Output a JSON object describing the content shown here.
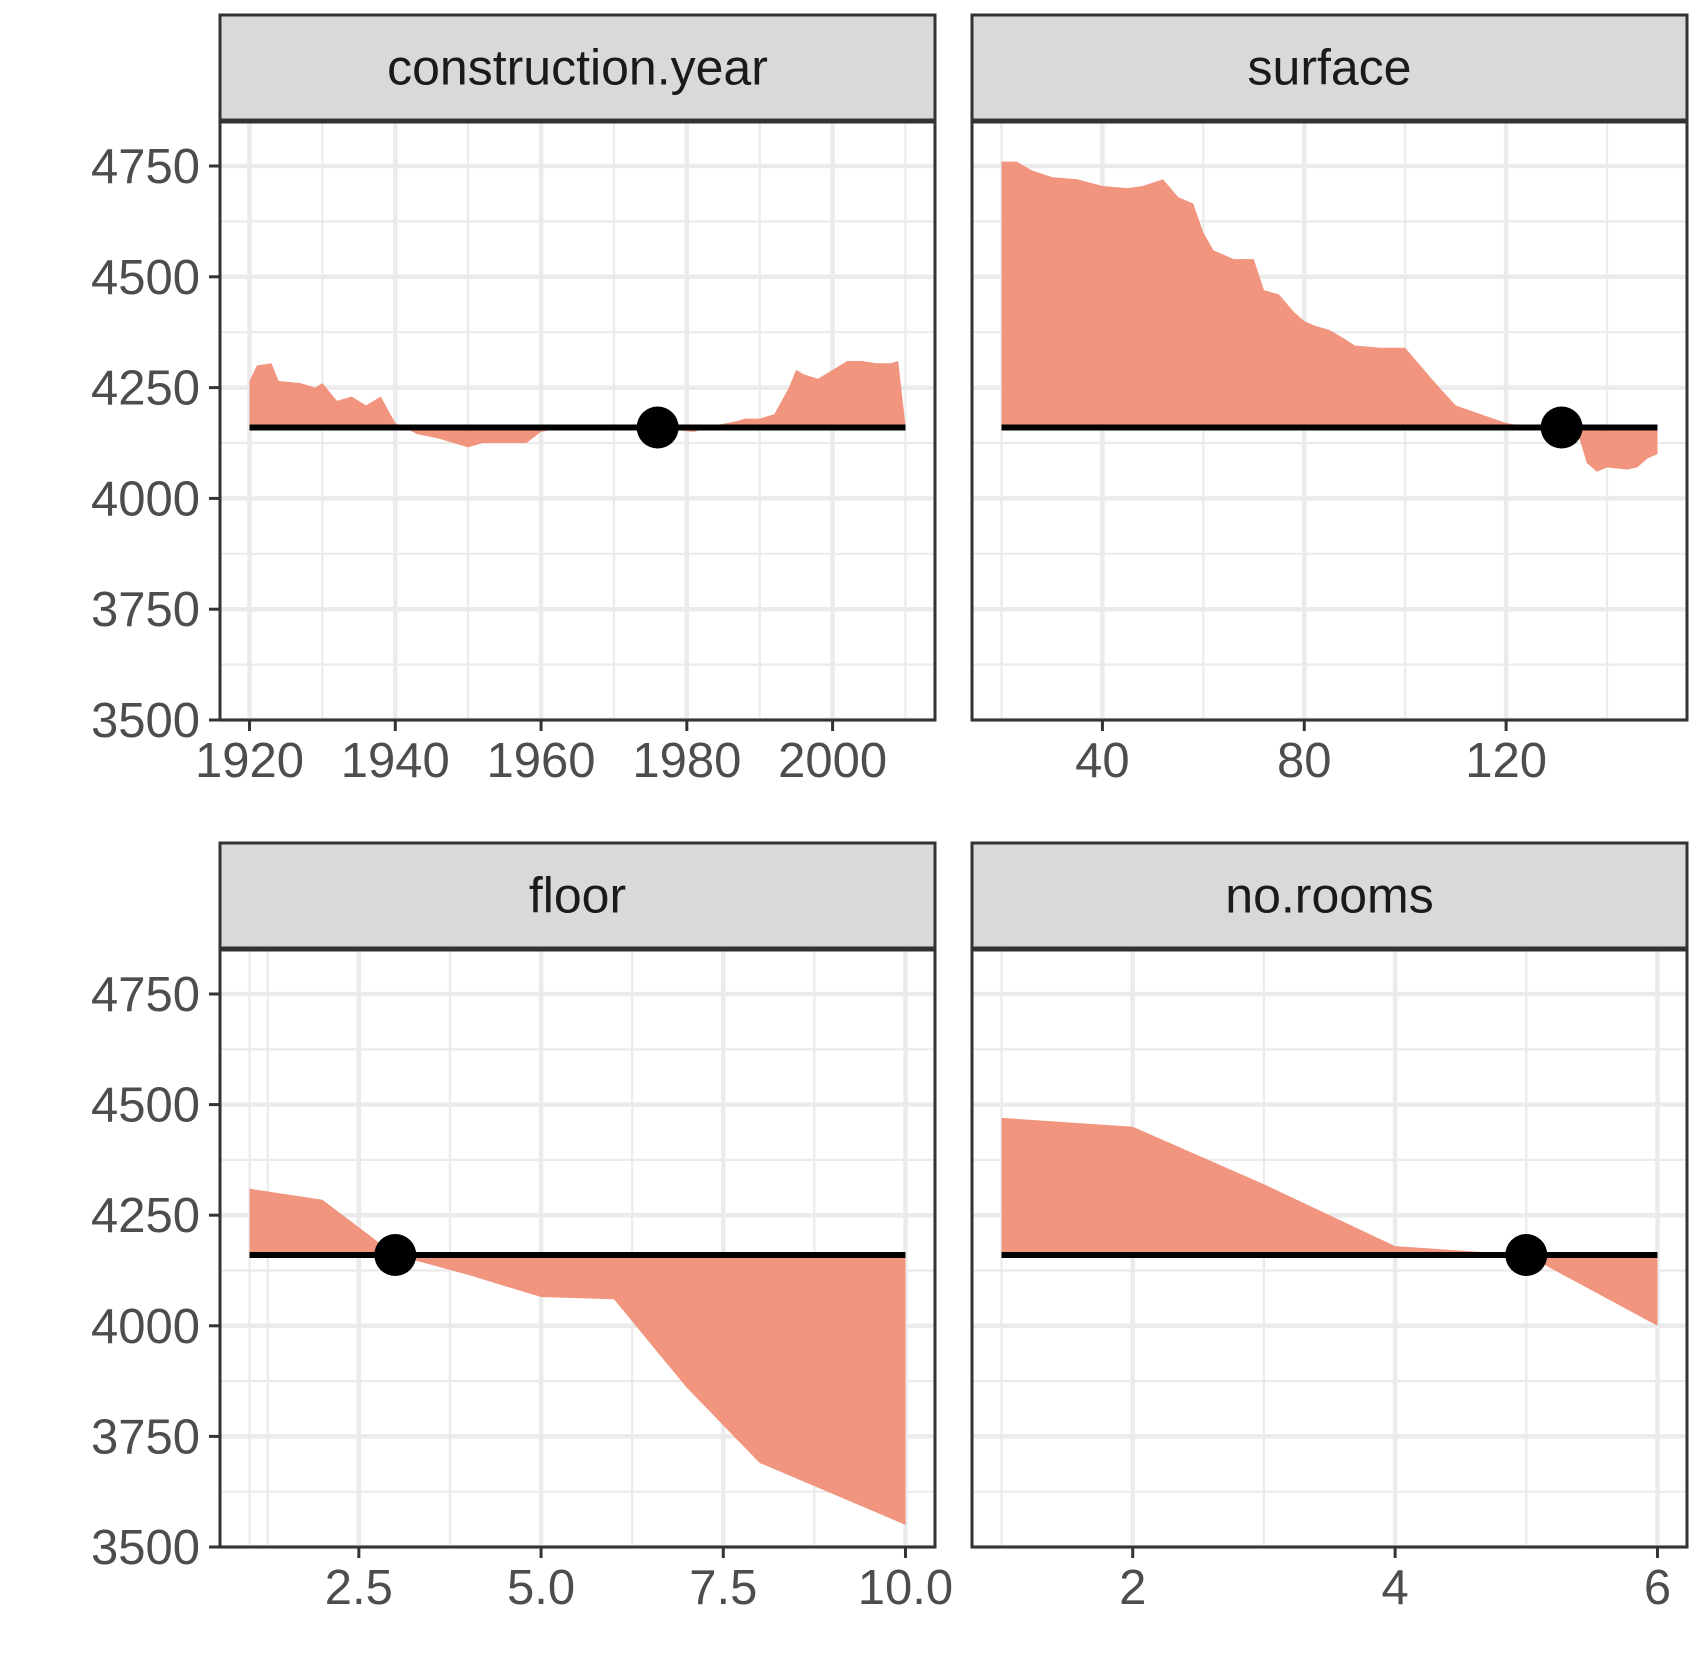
{
  "chart_data": {
    "type": "area",
    "ylim": [
      3500,
      4750
    ],
    "yticks": [
      3500,
      3750,
      4000,
      4250,
      4500,
      4750
    ],
    "baseline_prediction": 4160,
    "colors": {
      "fill": "#F08F78",
      "baseline": "#000000",
      "point": "#000000",
      "strip": "#D9D9D9",
      "grid": "#EBEBEB",
      "border": "#333333"
    },
    "panels": [
      {
        "name": "construction.year",
        "xlim": [
          1920,
          2010
        ],
        "xticks": [
          "1920",
          "1940",
          "1960",
          "1980",
          "2000"
        ],
        "observation": {
          "x": 1976,
          "y": 4160
        },
        "x": [
          1920,
          1921,
          1923,
          1924,
          1927,
          1929,
          1930,
          1932,
          1934,
          1936,
          1938,
          1940,
          1943,
          1946,
          1950,
          1952,
          1955,
          1958,
          1960,
          1963,
          1966,
          1968,
          1972,
          1975,
          1978,
          1981,
          1984,
          1987,
          1988,
          1990,
          1992,
          1994,
          1995,
          1996,
          1998,
          2000,
          2002,
          2004,
          2006,
          2008,
          2009,
          2010
        ],
        "values": [
          4265,
          4300,
          4305,
          4265,
          4260,
          4250,
          4260,
          4220,
          4230,
          4210,
          4230,
          4170,
          4145,
          4135,
          4115,
          4125,
          4125,
          4125,
          4150,
          4160,
          4160,
          4160,
          4155,
          4160,
          4155,
          4150,
          4165,
          4175,
          4180,
          4180,
          4190,
          4250,
          4290,
          4280,
          4270,
          4290,
          4310,
          4310,
          4305,
          4305,
          4310,
          4165
        ]
      },
      {
        "name": "surface",
        "xlim": [
          20,
          150
        ],
        "xticks": [
          "40",
          "80",
          "120"
        ],
        "observation": {
          "x": 131,
          "y": 4160
        },
        "x": [
          20,
          23,
          26,
          30,
          35,
          40,
          45,
          48,
          52,
          55,
          58,
          60,
          62,
          66,
          70,
          72,
          75,
          78,
          80,
          82,
          85,
          88,
          90,
          95,
          100,
          103,
          106,
          110,
          115,
          120,
          125,
          128,
          131,
          134,
          136,
          138,
          140,
          144,
          146,
          148,
          150
        ],
        "values": [
          4760,
          4760,
          4740,
          4725,
          4720,
          4705,
          4700,
          4705,
          4720,
          4680,
          4665,
          4600,
          4560,
          4540,
          4540,
          4470,
          4460,
          4420,
          4400,
          4390,
          4380,
          4360,
          4345,
          4340,
          4340,
          4300,
          4260,
          4210,
          4190,
          4170,
          4160,
          4150,
          4140,
          4155,
          4080,
          4060,
          4070,
          4065,
          4070,
          4090,
          4100
        ]
      },
      {
        "name": "floor",
        "xlim": [
          1,
          10
        ],
        "xticks": [
          "2.5",
          "5.0",
          "7.5",
          "10.0"
        ],
        "observation": {
          "x": 3,
          "y": 4160
        },
        "x": [
          1,
          2,
          3,
          4,
          5,
          6,
          7,
          8,
          9,
          10
        ],
        "values": [
          4310,
          4285,
          4160,
          4115,
          4065,
          4060,
          3860,
          3690,
          3620,
          3550
        ]
      },
      {
        "name": "no.rooms",
        "xlim": [
          1,
          6
        ],
        "xticks": [
          "2",
          "4",
          "6"
        ],
        "observation": {
          "x": 5,
          "y": 4160
        },
        "x": [
          1,
          2,
          3,
          4,
          5,
          6
        ],
        "values": [
          4470,
          4450,
          4320,
          4180,
          4160,
          4000
        ]
      }
    ]
  }
}
